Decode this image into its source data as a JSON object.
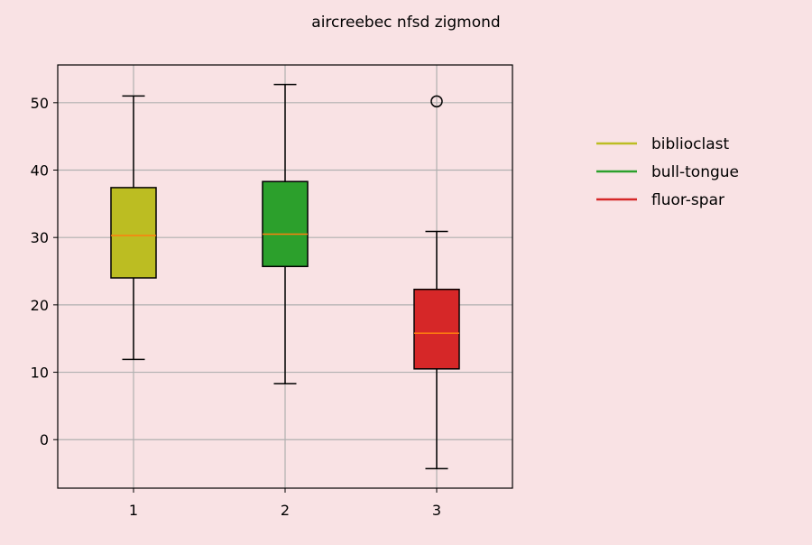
{
  "chart_data": {
    "type": "box",
    "title": "aircreebec nfsd zigmond",
    "xlabel": "",
    "ylabel": "",
    "categories": [
      "1",
      "2",
      "3"
    ],
    "ylim": [
      -7.2,
      55.6
    ],
    "yticks": [
      0,
      10,
      20,
      30,
      40,
      50
    ],
    "grid": true,
    "legend_position": "right",
    "series": [
      {
        "name": "biblioclast",
        "color": "#bcbd22",
        "whisker_low": 11.9,
        "q1": 24.0,
        "median": 30.3,
        "q3": 37.4,
        "whisker_high": 51.0,
        "outliers": []
      },
      {
        "name": "bull-tongue",
        "color": "#2ca02c",
        "whisker_low": 8.3,
        "q1": 25.7,
        "median": 30.5,
        "q3": 38.3,
        "whisker_high": 52.7,
        "outliers": []
      },
      {
        "name": "fluor-spar",
        "color": "#d62728",
        "whisker_low": -4.3,
        "q1": 10.5,
        "median": 15.8,
        "q3": 22.3,
        "whisker_high": 30.9,
        "outliers": [
          50.2
        ]
      }
    ],
    "colors": {
      "background": "#f9e2e4",
      "median_line": "#ff7f0e",
      "grid": "#b0b0b0"
    }
  }
}
